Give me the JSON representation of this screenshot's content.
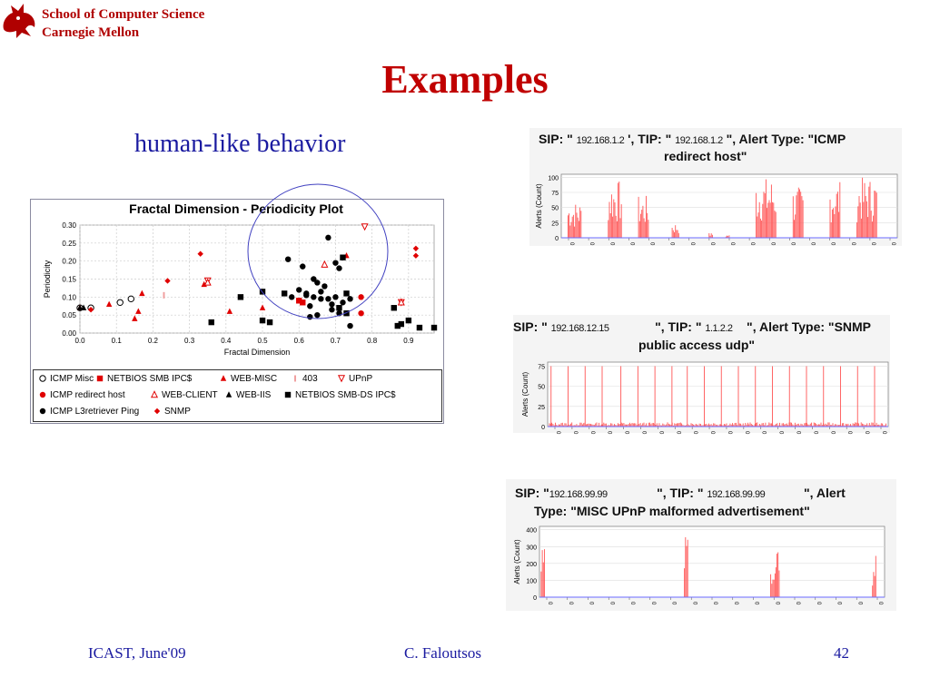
{
  "header": {
    "school_line1": "School of Computer Science",
    "school_line2": "Carnegie Mellon",
    "title": "Examples",
    "subtitle": "human-like behavior"
  },
  "footer": {
    "left": "ICAST, June'09",
    "center": "C. Faloutsos",
    "page": "42"
  },
  "colors": {
    "title": "#c00000",
    "blue_text": "#1a1aa0",
    "series_red": "#e00000",
    "series_black": "#000000",
    "alert_bar": "#ff5555"
  },
  "chart_data": [
    {
      "type": "scatter",
      "title": "Fractal Dimension - Periodicity Plot",
      "xlabel": "Fractal Dimension",
      "ylabel": "Periodicity",
      "xlim": [
        0.0,
        0.97
      ],
      "ylim": [
        0.0,
        0.3
      ],
      "xticks": [
        "0.0",
        "0.1",
        "0.2",
        "0.3",
        "0.4",
        "0.5",
        "0.6",
        "0.7",
        "0.8",
        "0.9"
      ],
      "yticks": [
        "0.00",
        "0.05",
        "0.10",
        "0.15",
        "0.20",
        "0.25",
        "0.30"
      ],
      "grid": true,
      "legend_position": "bottom",
      "series": [
        {
          "name": "ICMP Misc",
          "marker": "circle-open",
          "color": "#000000",
          "points": [
            [
              0.0,
              0.07
            ],
            [
              0.03,
              0.07
            ],
            [
              0.11,
              0.085
            ],
            [
              0.14,
              0.095
            ]
          ]
        },
        {
          "name": "NETBIOS SMB IPC$",
          "marker": "square",
          "color": "#e00000",
          "points": [
            [
              0.61,
              0.085
            ],
            [
              0.6,
              0.09
            ]
          ]
        },
        {
          "name": "WEB-MISC",
          "marker": "triangle",
          "color": "#e00000",
          "points": [
            [
              0.0,
              0.07
            ],
            [
              0.08,
              0.08
            ],
            [
              0.15,
              0.04
            ],
            [
              0.16,
              0.06
            ],
            [
              0.17,
              0.11
            ],
            [
              0.34,
              0.135
            ],
            [
              0.41,
              0.06
            ],
            [
              0.5,
              0.07
            ],
            [
              0.73,
              0.215
            ]
          ]
        },
        {
          "name": "403",
          "marker": "bar",
          "color": "#f0a0a0",
          "points": [
            [
              0.23,
              0.105
            ]
          ]
        },
        {
          "name": "UPnP",
          "marker": "triangle-down-open",
          "color": "#e00000",
          "points": [
            [
              0.35,
              0.145
            ],
            [
              0.78,
              0.295
            ],
            [
              0.88,
              0.085
            ]
          ]
        },
        {
          "name": "ICMP redirect host",
          "marker": "circle",
          "color": "#e00000",
          "points": [
            [
              0.77,
              0.1
            ],
            [
              0.77,
              0.055
            ]
          ]
        },
        {
          "name": "WEB-CLIENT",
          "marker": "triangle-open",
          "color": "#e00000",
          "points": [
            [
              0.35,
              0.14
            ],
            [
              0.67,
              0.19
            ],
            [
              0.88,
              0.085
            ]
          ]
        },
        {
          "name": "WEB-IIS",
          "marker": "triangle",
          "color": "#000000",
          "points": [
            [
              0.0,
              0.07
            ],
            [
              0.01,
              0.07
            ]
          ]
        },
        {
          "name": "NETBIOS SMB-DS IPC$",
          "marker": "square",
          "color": "#000000",
          "points": [
            [
              0.36,
              0.03
            ],
            [
              0.44,
              0.1
            ],
            [
              0.5,
              0.035
            ],
            [
              0.52,
              0.03
            ],
            [
              0.5,
              0.115
            ],
            [
              0.56,
              0.11
            ],
            [
              0.72,
              0.21
            ],
            [
              0.71,
              0.07
            ],
            [
              0.73,
              0.11
            ],
            [
              0.73,
              0.055
            ],
            [
              0.86,
              0.07
            ],
            [
              0.87,
              0.02
            ],
            [
              0.88,
              0.025
            ],
            [
              0.9,
              0.035
            ],
            [
              0.93,
              0.015
            ],
            [
              0.97,
              0.015
            ]
          ]
        },
        {
          "name": "ICMP L3retriever Ping",
          "marker": "circle",
          "color": "#000000",
          "points": [
            [
              0.57,
              0.205
            ],
            [
              0.61,
              0.185
            ],
            [
              0.68,
              0.265
            ],
            [
              0.7,
              0.195
            ],
            [
              0.71,
              0.18
            ],
            [
              0.64,
              0.15
            ],
            [
              0.65,
              0.14
            ],
            [
              0.67,
              0.13
            ],
            [
              0.66,
              0.115
            ],
            [
              0.64,
              0.1
            ],
            [
              0.62,
              0.11
            ],
            [
              0.6,
              0.12
            ],
            [
              0.63,
              0.075
            ],
            [
              0.65,
              0.05
            ],
            [
              0.68,
              0.095
            ],
            [
              0.69,
              0.08
            ],
            [
              0.7,
              0.1
            ],
            [
              0.72,
              0.085
            ],
            [
              0.74,
              0.095
            ],
            [
              0.69,
              0.065
            ],
            [
              0.74,
              0.02
            ],
            [
              0.71,
              0.055
            ],
            [
              0.58,
              0.1
            ],
            [
              0.62,
              0.105
            ],
            [
              0.66,
              0.095
            ],
            [
              0.63,
              0.045
            ]
          ]
        },
        {
          "name": "SNMP",
          "marker": "diamond",
          "color": "#e00000",
          "points": [
            [
              0.03,
              0.065
            ],
            [
              0.24,
              0.145
            ],
            [
              0.33,
              0.22
            ],
            [
              0.92,
              0.235
            ],
            [
              0.92,
              0.215
            ]
          ]
        }
      ]
    },
    {
      "type": "bar",
      "title": "SIP: \"192.168.1.2\", TIP: \"192.168.1.2\", Alert Type: \"ICMP redirect host\"",
      "sip": "192.168.1.2",
      "tip": "192.168.1.2",
      "ylabel": "Alerts (Count)",
      "yticks": [
        "0",
        "25",
        "50",
        "75",
        "100"
      ],
      "ylim": [
        0,
        105
      ],
      "xtick_label": "0",
      "xtick_count": 17,
      "bursts": [
        [
          0.02,
          0.06,
          60
        ],
        [
          0.14,
          0.18,
          95
        ],
        [
          0.23,
          0.26,
          70
        ],
        [
          0.33,
          0.35,
          25
        ],
        [
          0.44,
          0.45,
          8
        ],
        [
          0.49,
          0.5,
          5
        ],
        [
          0.58,
          0.64,
          100
        ],
        [
          0.69,
          0.72,
          85
        ],
        [
          0.8,
          0.83,
          95
        ],
        [
          0.88,
          0.94,
          100
        ]
      ]
    },
    {
      "type": "bar",
      "title": "SIP: \"192.168.12.15\", TIP: \"1.1.2.2\", Alert Type: \"SNMP public access udp\"",
      "sip": "192.168.12.15",
      "tip": "1.1.2.2",
      "ylabel": "Alerts (Count)",
      "yticks": [
        "0",
        "25",
        "50",
        "75"
      ],
      "ylim": [
        0,
        80
      ],
      "xtick_label": "0",
      "xtick_count": 20,
      "spikes": [
        0.01,
        0.06,
        0.11,
        0.16,
        0.215,
        0.265,
        0.315,
        0.365,
        0.41,
        0.46,
        0.51,
        0.56,
        0.61,
        0.66,
        0.71,
        0.76,
        0.81,
        0.86,
        0.91,
        0.96
      ],
      "spike_value": 75,
      "baseline_value": 4
    },
    {
      "type": "bar",
      "title": "SIP: \"192.168.99.99\", TIP: \"192.168.99.99\", Alert Type: \"MISC UPnP malformed advertisement\"",
      "sip": "192.168.99.99",
      "tip": "192.168.99.99",
      "ylabel": "Alerts (Count)",
      "yticks": [
        "0",
        "100",
        "200",
        "300",
        "400"
      ],
      "ylim": [
        0,
        420
      ],
      "xtick_label": "0",
      "xtick_count": 17,
      "bursts": [
        [
          0.005,
          0.015,
          290
        ],
        [
          0.42,
          0.43,
          385
        ],
        [
          0.67,
          0.685,
          305
        ],
        [
          0.685,
          0.695,
          280
        ],
        [
          0.965,
          0.975,
          275
        ]
      ]
    }
  ]
}
